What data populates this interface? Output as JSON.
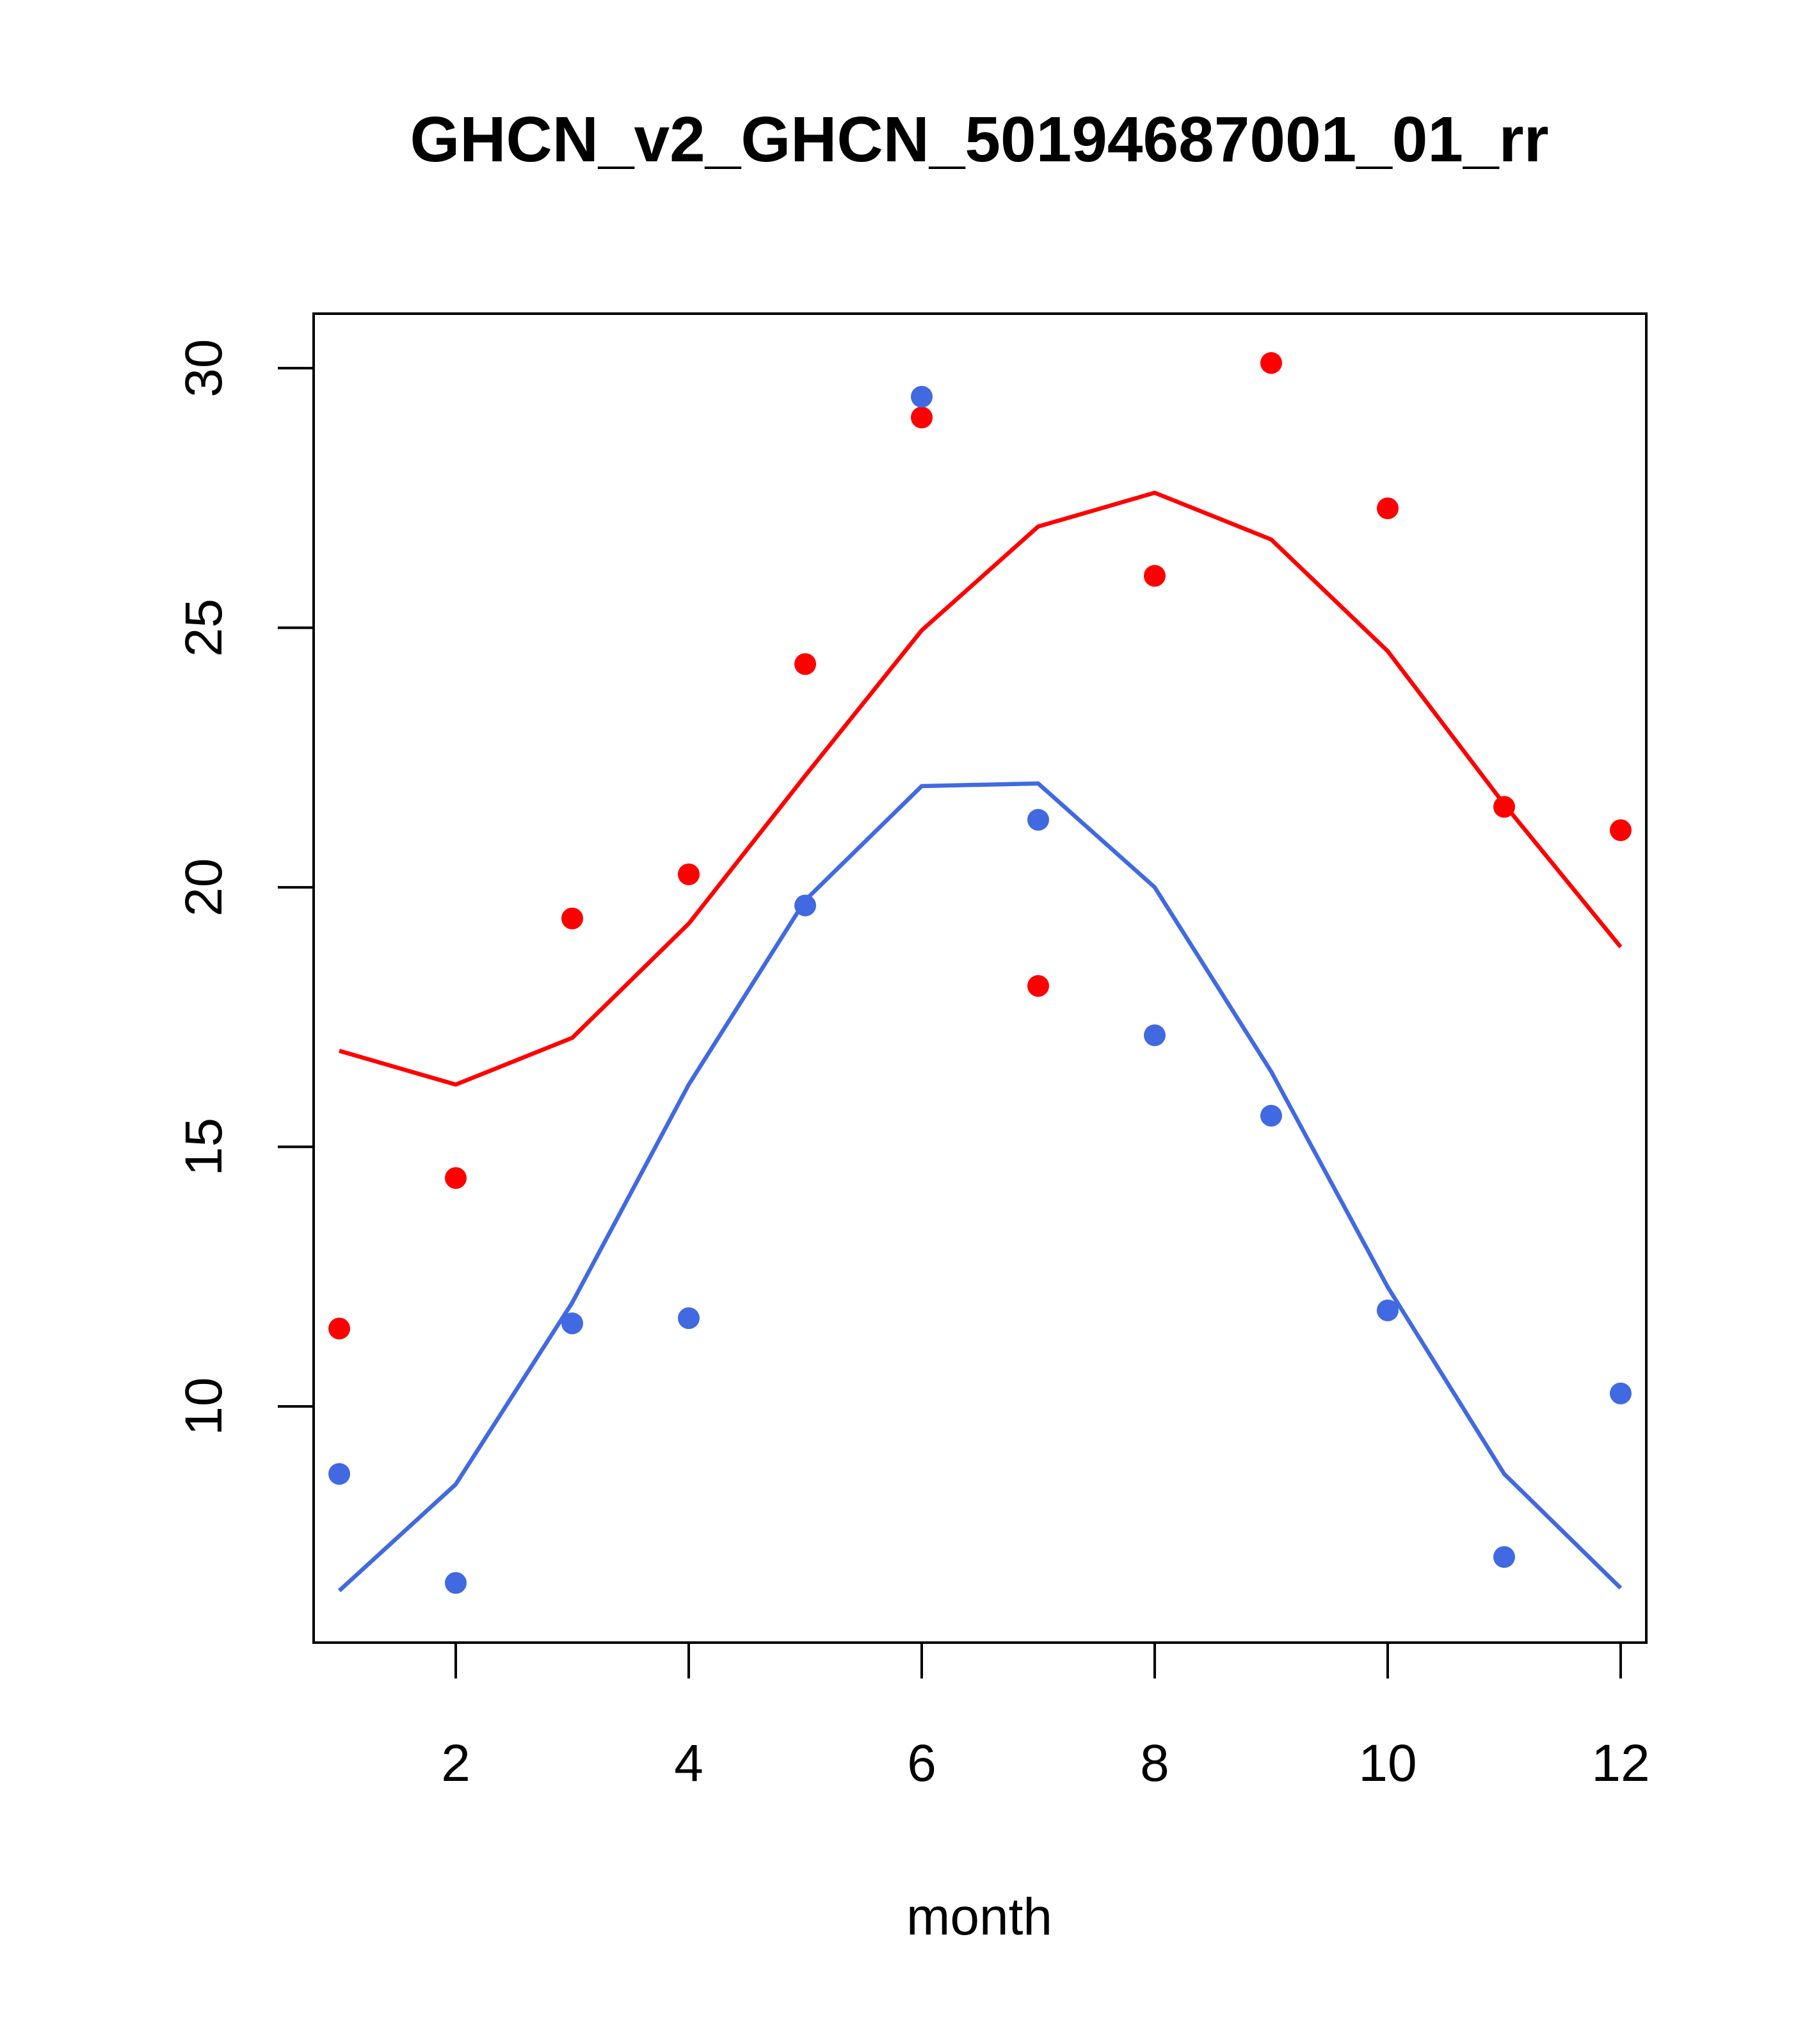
{
  "chart_data": {
    "type": "line",
    "title": "GHCN_v2_GHCN_50194687001_01_rr",
    "xlabel": "month",
    "ylabel": "",
    "xlim": [
      0.78,
      12.22
    ],
    "ylim": [
      5.45,
      31.05
    ],
    "x_ticks": [
      2,
      4,
      6,
      8,
      10,
      12
    ],
    "y_ticks": [
      10,
      15,
      20,
      25,
      30
    ],
    "grid": false,
    "legend": "none",
    "x": [
      1,
      2,
      3,
      4,
      5,
      6,
      7,
      8,
      9,
      10,
      11,
      12
    ],
    "series": [
      {
        "name": "red line",
        "kind": "line",
        "color": "#ff0000",
        "values": [
          16.85,
          16.2,
          17.1,
          19.3,
          22.15,
          24.95,
          26.95,
          27.6,
          26.7,
          24.55,
          21.6,
          18.85
        ]
      },
      {
        "name": "red points",
        "kind": "points",
        "color": "#ff0000",
        "values": [
          11.5,
          14.4,
          19.4,
          20.25,
          24.3,
          29.05,
          18.1,
          26.0,
          30.1,
          27.3,
          21.55,
          21.1
        ]
      },
      {
        "name": "blue line",
        "kind": "line",
        "color": "#4169e1",
        "values": [
          6.45,
          8.5,
          12.0,
          16.2,
          19.75,
          21.95,
          22.0,
          20.0,
          16.45,
          12.3,
          8.7,
          6.5
        ]
      },
      {
        "name": "blue points",
        "kind": "points",
        "color": "#4169e1",
        "values": [
          8.7,
          6.6,
          11.6,
          11.7,
          19.65,
          29.45,
          21.3,
          17.15,
          15.6,
          11.85,
          7.1,
          10.25
        ]
      }
    ]
  }
}
